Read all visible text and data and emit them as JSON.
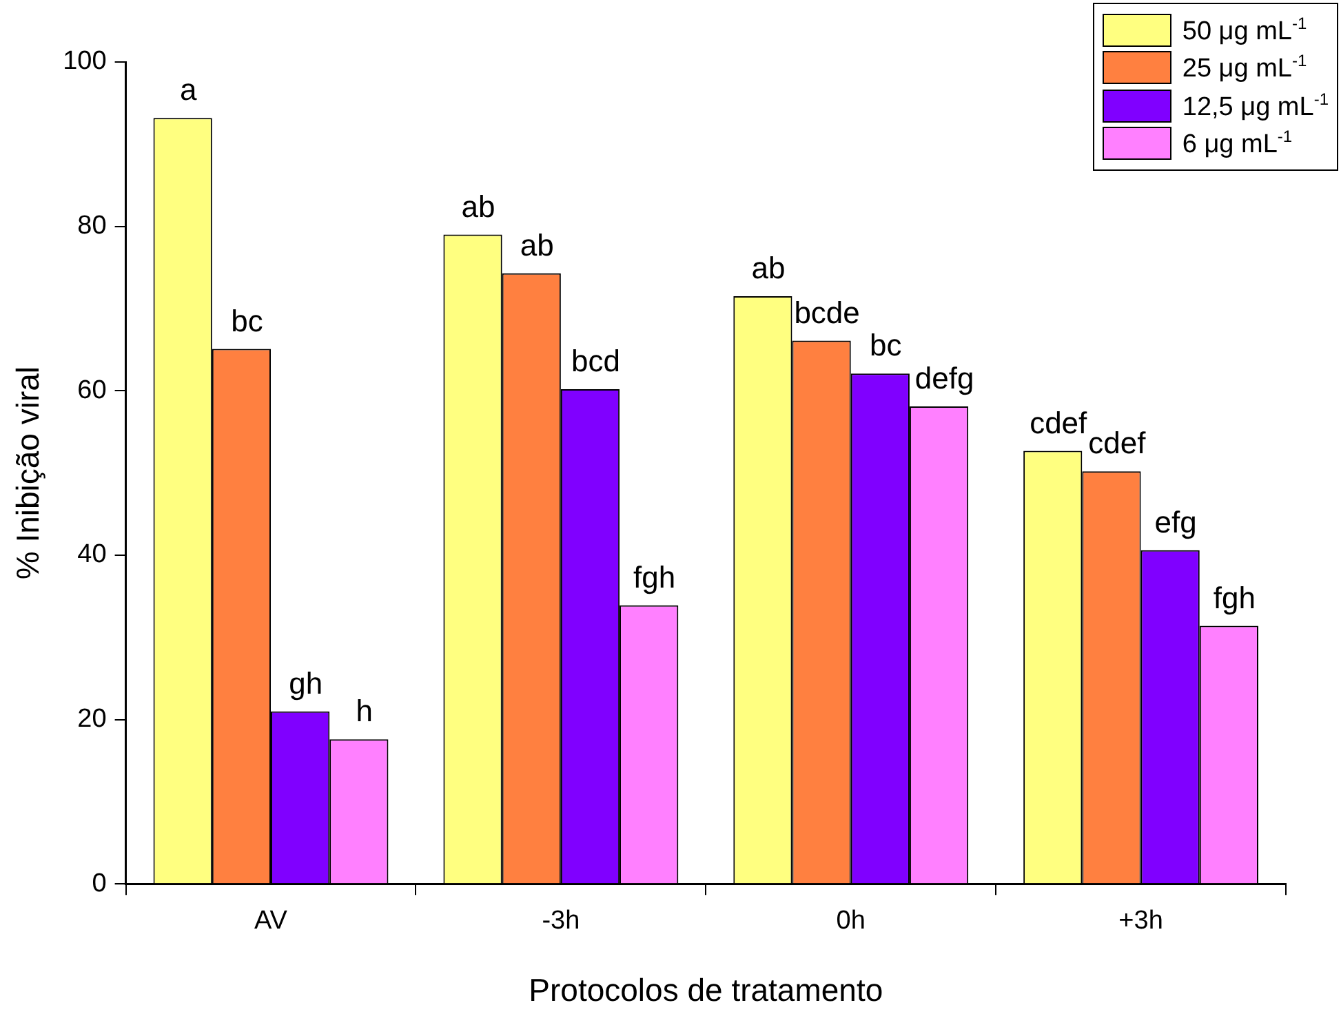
{
  "chart_data": {
    "type": "bar",
    "xlabel": "Protocolos de tratamento",
    "ylabel": "% Inibição viral",
    "categories": [
      "AV",
      "-3h",
      "0h",
      "+3h"
    ],
    "ylim": [
      0,
      100
    ],
    "yticks": [
      0,
      20,
      40,
      60,
      80,
      100
    ],
    "grid": false,
    "legend": "top right",
    "series": [
      {
        "name": "50 μg mL$^{-1}$",
        "color": "#ffff80",
        "values": [
          93.2,
          79.0,
          71.5,
          52.7
        ],
        "value_labels": [
          "a",
          "ab",
          "ab",
          "cdef"
        ]
      },
      {
        "name": "25 μg mL$^{-1}$",
        "color": "#ff8040",
        "values": [
          65.1,
          74.3,
          66.1,
          50.2
        ],
        "value_labels": [
          "bc",
          "ab",
          "bcde",
          "cdef"
        ]
      },
      {
        "name": "12,5 μg mL$^{-1}$",
        "color": "#8000ff",
        "values": [
          21.0,
          60.2,
          62.1,
          40.6
        ],
        "value_labels": [
          "gh",
          "bcd",
          "bc",
          "efg"
        ]
      },
      {
        "name": "6 μg mL$^{-1}$",
        "color": "#ff80ff",
        "values": [
          17.6,
          33.9,
          58.1,
          31.4
        ],
        "value_labels": [
          "h",
          "fgh",
          "defg",
          "fgh"
        ]
      }
    ]
  }
}
